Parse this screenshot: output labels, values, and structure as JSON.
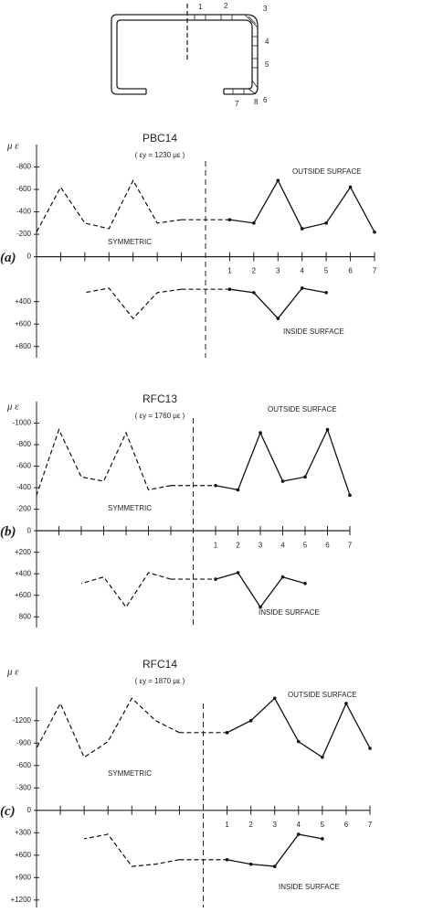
{
  "section": {
    "labels": [
      "1",
      "2",
      "3",
      "4",
      "5",
      "6",
      "7",
      "8"
    ]
  },
  "chart_data": [
    {
      "type": "line",
      "panel": "(a)",
      "title": "PBC14",
      "subtitle": "( εy = 1230 με )",
      "y_label": "μ ε",
      "annotation": "SYMMETRIC",
      "x": [
        1,
        2,
        3,
        4,
        5,
        6,
        7
      ],
      "xlim": [
        -7,
        7
      ],
      "xticks": [
        1,
        2,
        3,
        4,
        5,
        6,
        7
      ],
      "mirror": true,
      "ylim": [
        900,
        -1000
      ],
      "yticks": [
        -800,
        -600,
        -400,
        -200,
        0,
        {
          "value": 400,
          "label": "+400"
        },
        {
          "value": 600,
          "label": "+600"
        },
        {
          "value": 800,
          "label": "+800"
        }
      ],
      "series": [
        {
          "name": "OUTSIDE SURFACE",
          "color": "#111",
          "values": [
            -330,
            -300,
            -680,
            -250,
            -300,
            -620,
            -220
          ]
        },
        {
          "name": "INSIDE SURFACE",
          "color": "#111",
          "values": [
            290,
            320,
            550,
            280,
            320,
            null,
            null
          ]
        }
      ]
    },
    {
      "type": "line",
      "panel": "(b)",
      "title": "RFC13",
      "subtitle": "( εy = 1760 με )",
      "y_label": "μ ε",
      "annotation": "SYMMETRIC",
      "x": [
        1,
        2,
        3,
        4,
        5,
        6,
        7
      ],
      "xlim": [
        -7,
        7
      ],
      "xticks": [
        1,
        2,
        3,
        4,
        5,
        6,
        7
      ],
      "mirror": true,
      "ylim": [
        900,
        -1200
      ],
      "yticks": [
        -1000,
        -800,
        -600,
        -400,
        -200,
        0,
        {
          "value": 200,
          "label": "+200"
        },
        {
          "value": 400,
          "label": "+400"
        },
        {
          "value": 600,
          "label": "+600"
        },
        800
      ],
      "series": [
        {
          "name": "OUTSIDE SURFACE",
          "color": "#111",
          "values": [
            -420,
            -380,
            -910,
            -460,
            -500,
            -940,
            -330
          ]
        },
        {
          "name": "INSIDE SURFACE",
          "color": "#111",
          "values": [
            450,
            390,
            710,
            430,
            490,
            null,
            null
          ]
        }
      ]
    },
    {
      "type": "line",
      "panel": "(c)",
      "title": "RFC14",
      "subtitle": "( εy = 1870 με )",
      "y_label": "μ ε",
      "annotation": "SYMMETRIC",
      "x": [
        1,
        2,
        3,
        4,
        5,
        6,
        7
      ],
      "xlim": [
        -7,
        7
      ],
      "xticks": [
        1,
        2,
        3,
        4,
        5,
        6,
        7
      ],
      "mirror": true,
      "ylim": [
        1300,
        -1650
      ],
      "yticks": [
        -1200,
        -900,
        -600,
        -300,
        0,
        {
          "value": 300,
          "label": "+300"
        },
        {
          "value": 600,
          "label": "+600"
        },
        {
          "value": 900,
          "label": "+900"
        },
        {
          "value": 1200,
          "label": "+1200"
        }
      ],
      "series": [
        {
          "name": "OUTSIDE SURFACE",
          "color": "#111",
          "values": [
            -1040,
            -1200,
            -1500,
            -920,
            -710,
            -1430,
            -830
          ]
        },
        {
          "name": "INSIDE SURFACE",
          "color": "#111",
          "values": [
            660,
            720,
            750,
            320,
            380,
            null,
            null
          ]
        }
      ]
    }
  ]
}
